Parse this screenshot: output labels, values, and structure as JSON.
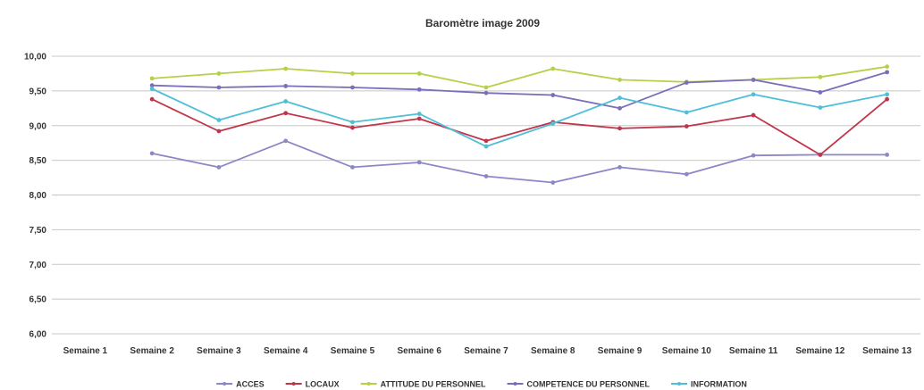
{
  "chart_data": {
    "type": "line",
    "title": "Baromètre image 2009",
    "xlabel": "",
    "ylabel": "",
    "ylim": [
      6.0,
      10.0
    ],
    "yticks": [
      "6,00",
      "6,50",
      "7,00",
      "7,50",
      "8,00",
      "8,50",
      "9,00",
      "9,50",
      "10,00"
    ],
    "grid": true,
    "legend_position": "bottom",
    "categories": [
      "Semaine 1",
      "Semaine 2",
      "Semaine 3",
      "Semaine 4",
      "Semaine 5",
      "Semaine 6",
      "Semaine 7",
      "Semaine 8",
      "Semaine 9",
      "Semaine 10",
      "Semaine 11",
      "Semaine 12",
      "Semaine 13"
    ],
    "series": [
      {
        "name": "ACCES",
        "color": "#8c88c8",
        "values": [
          null,
          8.6,
          8.4,
          8.78,
          8.4,
          8.47,
          8.27,
          8.18,
          8.4,
          8.3,
          8.57,
          8.58,
          8.58
        ]
      },
      {
        "name": "LOCAUX",
        "color": "#c0364a",
        "values": [
          null,
          9.38,
          8.92,
          9.18,
          8.97,
          9.1,
          8.78,
          9.05,
          8.96,
          8.99,
          9.15,
          8.58,
          9.38
        ]
      },
      {
        "name": "ATTITUDE DU PERSONNEL",
        "color": "#b5d148",
        "values": [
          null,
          9.68,
          9.75,
          9.82,
          9.75,
          9.75,
          9.55,
          9.82,
          9.66,
          9.63,
          9.66,
          9.7,
          9.85
        ]
      },
      {
        "name": "COMPETENCE DU PERSONNEL",
        "color": "#7a6fb8",
        "values": [
          null,
          9.58,
          9.55,
          9.57,
          9.55,
          9.52,
          9.47,
          9.44,
          9.25,
          9.62,
          9.66,
          9.48,
          9.77
        ]
      },
      {
        "name": "INFORMATION",
        "color": "#4fbfd8",
        "values": [
          null,
          9.53,
          9.08,
          9.35,
          9.05,
          9.17,
          8.7,
          9.03,
          9.4,
          9.19,
          9.45,
          9.26,
          9.45
        ]
      }
    ]
  }
}
